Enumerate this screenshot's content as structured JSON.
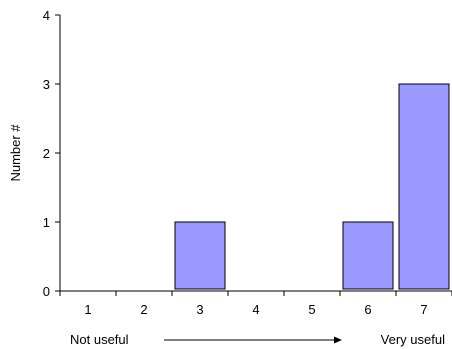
{
  "chart_data": {
    "type": "bar",
    "categories": [
      "1",
      "2",
      "3",
      "4",
      "5",
      "6",
      "7"
    ],
    "values": [
      0,
      0,
      1,
      0,
      0,
      1,
      3
    ],
    "ylabel": "Number #",
    "ylim": [
      0,
      4
    ],
    "yticks": [
      "0",
      "1",
      "2",
      "3",
      "4"
    ],
    "bar_color": "#9999ff",
    "grid": false,
    "annotations": {
      "left_label": "Not useful",
      "right_label": "Very useful"
    }
  }
}
